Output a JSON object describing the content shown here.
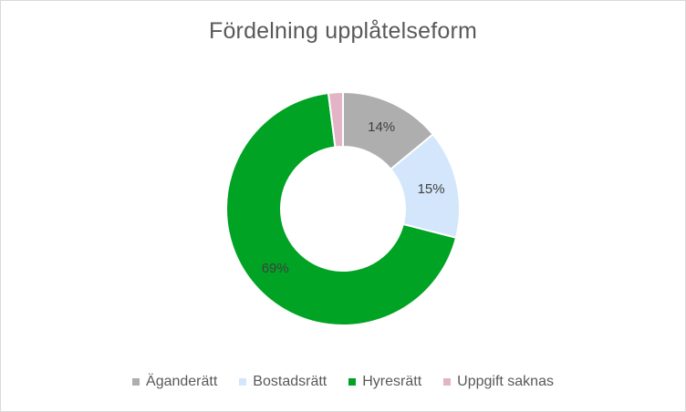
{
  "chart_data": {
    "type": "pie",
    "title": "Fördelning upplåtelseform",
    "categories": [
      "Äganderätt",
      "Bostadsrätt",
      "Hyresrätt",
      "Uppgift saknas"
    ],
    "values": [
      14,
      15,
      69,
      2
    ],
    "labels": [
      "14%",
      "15%",
      "69%",
      ""
    ],
    "colors": [
      "#aeaeae",
      "#d3e6fb",
      "#00a323",
      "#e2b4c5"
    ],
    "label_color": "#404040",
    "donut": true,
    "legend_position": "bottom"
  }
}
